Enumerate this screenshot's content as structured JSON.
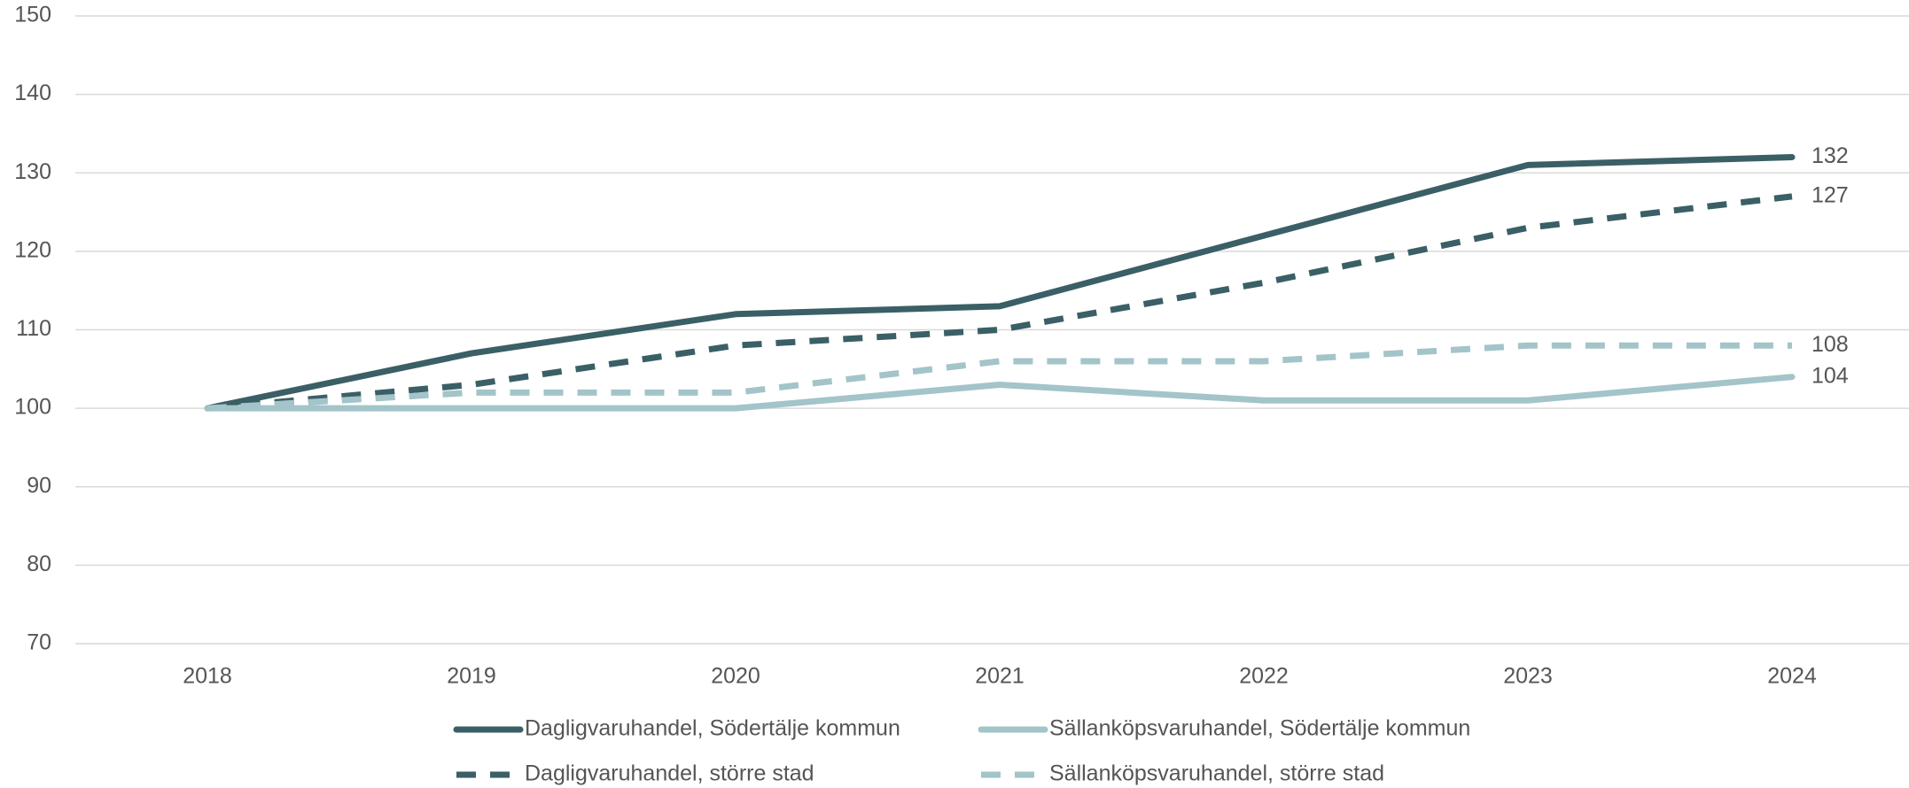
{
  "chart_data": {
    "type": "line",
    "categories": [
      "2018",
      "2019",
      "2020",
      "2021",
      "2022",
      "2023",
      "2024"
    ],
    "series": [
      {
        "name": "Dagligvaruhandel, Södertälje kommun",
        "color": "#3b5f66",
        "dashed": false,
        "values": [
          100,
          107,
          112,
          113,
          122,
          131,
          132
        ]
      },
      {
        "name": "Sällanköpsvaruhandel, Södertälje kommun",
        "color": "#a3c4c9",
        "dashed": false,
        "values": [
          100,
          100,
          100,
          103,
          101,
          101,
          104
        ]
      },
      {
        "name": "Dagligvaruhandel, större stad",
        "color": "#3b5f66",
        "dashed": true,
        "values": [
          100,
          103,
          108,
          110,
          116,
          123,
          127
        ]
      },
      {
        "name": "Sällanköpsvaruhandel, större stad",
        "color": "#a3c4c9",
        "dashed": true,
        "values": [
          100,
          102,
          102,
          106,
          106,
          108,
          108
        ]
      }
    ],
    "ylim": [
      70,
      150
    ],
    "yticks": [
      70,
      80,
      90,
      100,
      110,
      120,
      130,
      140,
      150
    ],
    "grid": true
  }
}
